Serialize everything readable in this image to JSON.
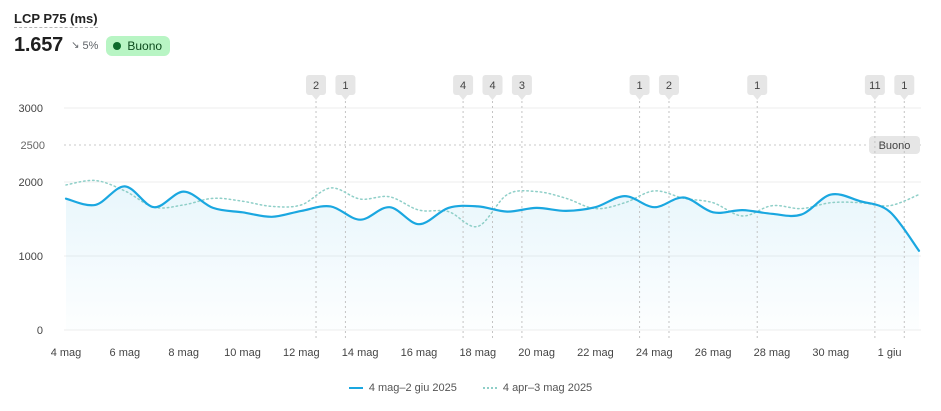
{
  "metric": {
    "title": "LCP P75 (ms)",
    "value": "1.657",
    "delta_icon": "arrow-down-right-icon",
    "delta": "5%",
    "badge": "Buono",
    "badge_color": "#b8f5c4",
    "badge_dot_color": "#0d6b2c"
  },
  "chart_data": {
    "type": "line",
    "y_ticks": [
      0,
      1000,
      2000,
      3000
    ],
    "ylim": [
      0,
      3000
    ],
    "threshold": {
      "value": 2500,
      "tick_label": "2500",
      "label": "Buono"
    },
    "x_ticks": [
      "4 mag",
      "6 mag",
      "8 mag",
      "10 mag",
      "12 mag",
      "14 mag",
      "16 mag",
      "18 mag",
      "20 mag",
      "22 mag",
      "24 mag",
      "26 mag",
      "28 mag",
      "30 mag",
      "1 giu"
    ],
    "x": [
      "4 mag",
      "5 mag",
      "6 mag",
      "7 mag",
      "8 mag",
      "9 mag",
      "10 mag",
      "11 mag",
      "12 mag",
      "13 mag",
      "14 mag",
      "15 mag",
      "16 mag",
      "17 mag",
      "18 mag",
      "19 mag",
      "20 mag",
      "21 mag",
      "22 mag",
      "23 mag",
      "24 mag",
      "25 mag",
      "26 mag",
      "27 mag",
      "28 mag",
      "29 mag",
      "30 mag",
      "31 mag",
      "1 giu",
      "2 giu"
    ],
    "series": [
      {
        "name": "4 mag–2 giu 2025",
        "style": "solid",
        "color": "#1aa7e0",
        "values": [
          1775,
          1690,
          1940,
          1660,
          1870,
          1650,
          1590,
          1530,
          1610,
          1670,
          1490,
          1660,
          1430,
          1650,
          1670,
          1600,
          1650,
          1610,
          1660,
          1810,
          1660,
          1790,
          1590,
          1620,
          1570,
          1560,
          1830,
          1740,
          1600,
          1070
        ]
      },
      {
        "name": "4 apr–3 mag 2025",
        "style": "dotted",
        "color": "#8fcfc8",
        "values": [
          1960,
          2020,
          1880,
          1660,
          1690,
          1780,
          1740,
          1670,
          1690,
          1920,
          1770,
          1800,
          1620,
          1600,
          1400,
          1830,
          1870,
          1780,
          1640,
          1720,
          1880,
          1780,
          1720,
          1540,
          1680,
          1640,
          1720,
          1720,
          1680,
          1830
        ]
      }
    ],
    "annotations": [
      {
        "x": 8.5,
        "label": "2"
      },
      {
        "x": 9.5,
        "label": "1"
      },
      {
        "x": 13.5,
        "label": "4"
      },
      {
        "x": 14.5,
        "label": "4"
      },
      {
        "x": 15.5,
        "label": "3"
      },
      {
        "x": 19.5,
        "label": "1"
      },
      {
        "x": 20.5,
        "label": "2"
      },
      {
        "x": 23.5,
        "label": "1"
      },
      {
        "x": 27.5,
        "label": "11"
      },
      {
        "x": 28.5,
        "label": "1"
      }
    ],
    "legend": [
      "4 mag–2 giu 2025",
      "4 apr–3 mag 2025"
    ],
    "legend_position": "bottom-center",
    "grid": true
  }
}
